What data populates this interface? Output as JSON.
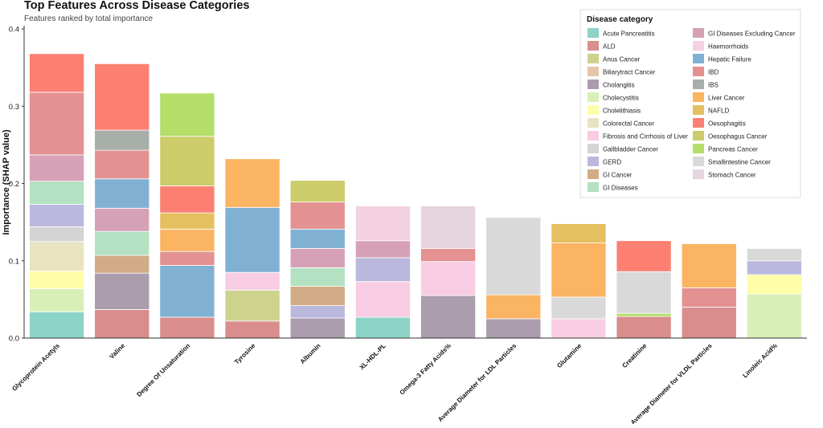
{
  "chart_data": {
    "type": "bar",
    "stacked": true,
    "title": "Top Features Across Disease Categories",
    "subtitle": "Features ranked by total importance",
    "xlabel": "",
    "ylabel": "Importance (SHAP value)",
    "ylim": [
      0,
      0.4
    ],
    "yticks": [
      "0.0",
      "0.1",
      "0.2",
      "0.3",
      "0.4"
    ],
    "grid": false,
    "legend_position": "top-right",
    "legend_title": "Disease category",
    "categories": [
      "Glycoprotein Acetyls",
      "Valine",
      "Degree Of Unsaturation",
      "Tyrosine",
      "Albumin",
      "XL-HDL-PL",
      "Omega-3 Fatty Acids%",
      "Average Diameter for LDL Particles",
      "Glutamine",
      "Creatinine",
      "Average Diameter for VLDL Particles",
      "Linoleic Acid%"
    ],
    "series": [
      {
        "name": "Acute Pancreatitis",
        "color": "#8dd3c7",
        "values": [
          0.034,
          0,
          0,
          0,
          0,
          0.027,
          0,
          0,
          0,
          0,
          0,
          0
        ]
      },
      {
        "name": "ALD",
        "color": "#d98d8d",
        "values": [
          0,
          0.037,
          0.027,
          0.022,
          0,
          0,
          0,
          0,
          0,
          0.028,
          0.04,
          0
        ]
      },
      {
        "name": "Anus Cancer",
        "color": "#cdd28c",
        "values": [
          0,
          0,
          0,
          0.04,
          0,
          0,
          0,
          0,
          0,
          0,
          0,
          0
        ]
      },
      {
        "name": "Biliarytract Cancer",
        "color": "#e3c7a8",
        "values": [
          0,
          0,
          0,
          0,
          0,
          0,
          0,
          0,
          0,
          0,
          0,
          0
        ]
      },
      {
        "name": "Cholangitis",
        "color": "#ab9cae",
        "values": [
          0,
          0.047,
          0,
          0,
          0.026,
          0,
          0.055,
          0.025,
          0,
          0,
          0,
          0
        ]
      },
      {
        "name": "Cholecystitis",
        "color": "#d9efb8",
        "values": [
          0.03,
          0,
          0,
          0,
          0,
          0,
          0,
          0,
          0,
          0,
          0,
          0.057
        ]
      },
      {
        "name": "Cholelithiasis",
        "color": "#fefea8",
        "values": [
          0.023,
          0,
          0,
          0,
          0,
          0,
          0,
          0,
          0,
          0,
          0,
          0.025
        ]
      },
      {
        "name": "Colorectal Cancer",
        "color": "#e8e3c1",
        "values": [
          0.038,
          0,
          0,
          0,
          0,
          0,
          0,
          0,
          0,
          0,
          0,
          0
        ]
      },
      {
        "name": "Fibrosis and Cirrhosis of Liver",
        "color": "#f8cde3",
        "values": [
          0,
          0,
          0,
          0.023,
          0,
          0.046,
          0.044,
          0,
          0.025,
          0,
          0,
          0
        ]
      },
      {
        "name": "Gallbladder Cancer",
        "color": "#d4d4d4",
        "values": [
          0.019,
          0,
          0,
          0,
          0,
          0,
          0,
          0,
          0,
          0,
          0,
          0
        ]
      },
      {
        "name": "GERD",
        "color": "#bab8dd",
        "values": [
          0.029,
          0,
          0,
          0,
          0.016,
          0.031,
          0,
          0,
          0,
          0,
          0,
          0.018
        ]
      },
      {
        "name": "GI Cancer",
        "color": "#d1ac86",
        "values": [
          0,
          0.023,
          0,
          0,
          0.025,
          0,
          0,
          0,
          0,
          0,
          0,
          0
        ]
      },
      {
        "name": "GI Diseases",
        "color": "#b4e1c1",
        "values": [
          0.03,
          0.031,
          0,
          0,
          0.024,
          0,
          0,
          0,
          0,
          0,
          0,
          0
        ]
      },
      {
        "name": "GI Diseases Excluding Cancer",
        "color": "#d6a1b7",
        "values": [
          0.034,
          0.03,
          0,
          0,
          0.025,
          0.022,
          0,
          0,
          0,
          0,
          0,
          0
        ]
      },
      {
        "name": "Haemorrhoids",
        "color": "#f3d1e1",
        "values": [
          0,
          0,
          0,
          0,
          0,
          0.045,
          0,
          0,
          0,
          0,
          0,
          0
        ]
      },
      {
        "name": "Hepatic Failure",
        "color": "#80b1d3",
        "values": [
          0,
          0.038,
          0.067,
          0.084,
          0.025,
          0,
          0,
          0,
          0,
          0,
          0,
          0
        ]
      },
      {
        "name": "IBD",
        "color": "#e39191",
        "values": [
          0.081,
          0.037,
          0.018,
          0,
          0.035,
          0,
          0.017,
          0,
          0,
          0,
          0.025,
          0
        ]
      },
      {
        "name": "IBS",
        "color": "#a8aeaa",
        "values": [
          0,
          0.026,
          0,
          0,
          0,
          0,
          0,
          0,
          0,
          0,
          0,
          0
        ]
      },
      {
        "name": "Liver Cancer",
        "color": "#fbb462",
        "values": [
          0,
          0,
          0.029,
          0.063,
          0,
          0,
          0,
          0.031,
          0.07,
          0,
          0.057,
          0
        ]
      },
      {
        "name": "NAFLD",
        "color": "#e5c061",
        "values": [
          0,
          0,
          0.021,
          0,
          0,
          0,
          0,
          0,
          0.025,
          0,
          0,
          0
        ]
      },
      {
        "name": "Oesophagitis",
        "color": "#fb8072",
        "values": [
          0.05,
          0.086,
          0.035,
          0,
          0,
          0,
          0,
          0,
          0,
          0.04,
          0,
          0
        ]
      },
      {
        "name": "Oesophagus Cancer",
        "color": "#cccc6a",
        "values": [
          0,
          0,
          0.064,
          0,
          0.028,
          0,
          0,
          0,
          0,
          0,
          0,
          0
        ]
      },
      {
        "name": "Pancreas Cancer",
        "color": "#b3de69",
        "values": [
          0,
          0,
          0.056,
          0,
          0,
          0,
          0,
          0,
          0,
          0.004,
          0,
          0
        ]
      },
      {
        "name": "Smallintestine Cancer",
        "color": "#d9d9d9",
        "values": [
          0,
          0,
          0,
          0,
          0,
          0,
          0,
          0.1,
          0.028,
          0.054,
          0,
          0.016
        ]
      },
      {
        "name": "Stomach Cancer",
        "color": "#e6d4de",
        "values": [
          0,
          0,
          0,
          0,
          0,
          0,
          0.055,
          0,
          0,
          0,
          0,
          0
        ]
      }
    ],
    "stack_order": [
      [
        "Acute Pancreatitis",
        "Cholecystitis",
        "Cholelithiasis",
        "Colorectal Cancer",
        "Gallbladder Cancer",
        "GERD",
        "GI Diseases",
        "GI Diseases Excluding Cancer",
        "IBD",
        "Oesophagitis"
      ],
      [
        "ALD",
        "Cholangitis",
        "GI Cancer",
        "GI Diseases",
        "GI Diseases Excluding Cancer",
        "Hepatic Failure",
        "IBD",
        "IBS",
        "Oesophagitis"
      ],
      [
        "ALD",
        "Hepatic Failure",
        "IBD",
        "Liver Cancer",
        "NAFLD",
        "Oesophagitis",
        "Oesophagus Cancer",
        "Pancreas Cancer"
      ],
      [
        "ALD",
        "Anus Cancer",
        "Fibrosis and Cirrhosis of Liver",
        "Hepatic Failure",
        "Liver Cancer"
      ],
      [
        "Cholangitis",
        "GERD",
        "GI Cancer",
        "GI Diseases",
        "GI Diseases Excluding Cancer",
        "Hepatic Failure",
        "IBD",
        "Oesophagus Cancer"
      ],
      [
        "Acute Pancreatitis",
        "Fibrosis and Cirrhosis of Liver",
        "GERD",
        "GI Diseases Excluding Cancer",
        "Haemorrhoids"
      ],
      [
        "Cholangitis",
        "Fibrosis and Cirrhosis of Liver",
        "IBD",
        "Stomach Cancer"
      ],
      [
        "Cholangitis",
        "Liver Cancer",
        "Smallintestine Cancer"
      ],
      [
        "Fibrosis and Cirrhosis of Liver",
        "Smallintestine Cancer",
        "Liver Cancer",
        "NAFLD"
      ],
      [
        "ALD",
        "Pancreas Cancer",
        "Smallintestine Cancer",
        "Oesophagitis"
      ],
      [
        "ALD",
        "IBD",
        "Liver Cancer"
      ],
      [
        "Cholecystitis",
        "Cholelithiasis",
        "GERD",
        "Smallintestine Cancer"
      ]
    ]
  }
}
